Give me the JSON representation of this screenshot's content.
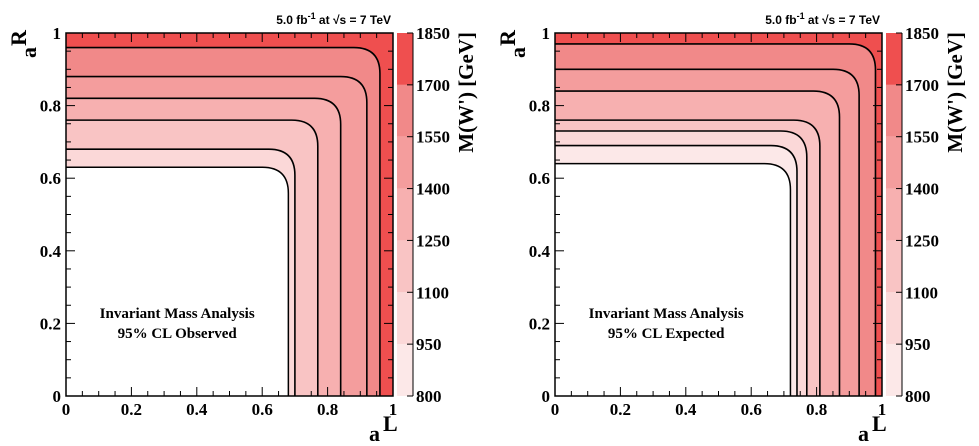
{
  "chart_data": [
    {
      "type": "heatmap",
      "panel": "observed",
      "lumi_text": "5.0 fb",
      "lumi_sup": "-1",
      "energy_text": " at ",
      "sqrt_s": "√s = 7 TeV",
      "annotation_line1": "Invariant Mass Analysis",
      "annotation_line2": "95% CL Observed",
      "xlabel": "a",
      "xlabel_sup": "L",
      "ylabel": "a",
      "ylabel_sup": "R",
      "zlabel": "M(W') [GeV]",
      "xlim": [
        0,
        1
      ],
      "ylim": [
        0,
        1
      ],
      "zlim": [
        800,
        1850
      ],
      "x_ticks": [
        "0",
        "0.2",
        "0.4",
        "0.6",
        "0.8",
        "1"
      ],
      "y_ticks": [
        "0",
        "0.2",
        "0.4",
        "0.6",
        "0.8",
        "1"
      ],
      "z_ticks": [
        "800",
        "950",
        "1100",
        "1250",
        "1400",
        "1550",
        "1700",
        "1850"
      ],
      "contour_levels_gev": [
        1100,
        1250,
        1400,
        1550,
        1700
      ],
      "excluded_region": {
        "corner_x": 0.68,
        "corner_y": 0.63
      },
      "contours": [
        {
          "level": 1100,
          "corner_x": 0.7,
          "corner_y": 0.68
        },
        {
          "level": 1250,
          "corner_x": 0.77,
          "corner_y": 0.76
        },
        {
          "level": 1400,
          "corner_x": 0.84,
          "corner_y": 0.82
        },
        {
          "level": 1550,
          "corner_x": 0.92,
          "corner_y": 0.88
        },
        {
          "level": 1700,
          "corner_x": 0.96,
          "corner_y": 0.96
        }
      ]
    },
    {
      "type": "heatmap",
      "panel": "expected",
      "lumi_text": "5.0 fb",
      "lumi_sup": "-1",
      "energy_text": " at ",
      "sqrt_s": "√s = 7 TeV",
      "annotation_line1": "Invariant Mass Analysis",
      "annotation_line2": "95% CL Expected",
      "xlabel": "a",
      "xlabel_sup": "L",
      "ylabel": "a",
      "ylabel_sup": "R",
      "zlabel": "M(W') [GeV]",
      "xlim": [
        0,
        1
      ],
      "ylim": [
        0,
        1
      ],
      "zlim": [
        800,
        1850
      ],
      "x_ticks": [
        "0",
        "0.2",
        "0.4",
        "0.6",
        "0.8",
        "1"
      ],
      "y_ticks": [
        "0",
        "0.2",
        "0.4",
        "0.6",
        "0.8",
        "1"
      ],
      "z_ticks": [
        "800",
        "950",
        "1100",
        "1250",
        "1400",
        "1550",
        "1700",
        "1850"
      ],
      "contour_levels_gev": [
        950,
        1100,
        1250,
        1400,
        1550,
        1700
      ],
      "excluded_region": {
        "corner_x": 0.72,
        "corner_y": 0.64
      },
      "contours": [
        {
          "level": 950,
          "corner_x": 0.74,
          "corner_y": 0.69
        },
        {
          "level": 1100,
          "corner_x": 0.77,
          "corner_y": 0.73
        },
        {
          "level": 1250,
          "corner_x": 0.81,
          "corner_y": 0.76
        },
        {
          "level": 1400,
          "corner_x": 0.87,
          "corner_y": 0.84
        },
        {
          "level": 1550,
          "corner_x": 0.93,
          "corner_y": 0.9
        },
        {
          "level": 1700,
          "corner_x": 0.98,
          "corner_y": 0.97
        }
      ]
    }
  ],
  "colors": {
    "palette": [
      "#fce8e8",
      "#fbd8d8",
      "#f9c4c4",
      "#f7b0b0",
      "#f49d9d",
      "#f18989",
      "#ef4f4f"
    ],
    "excluded": "#ffffff",
    "contour_line": "#000000"
  }
}
